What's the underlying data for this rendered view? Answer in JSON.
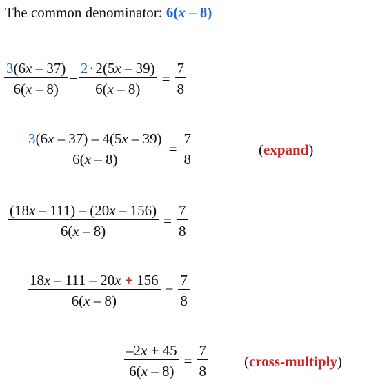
{
  "intro": {
    "text": "The common denominator: ",
    "denominator_coef": "6(",
    "denominator_var": "x",
    "denominator_rest": " – 8)"
  },
  "step1": {
    "left_num_coef": "3",
    "left_num_rest": "(6x – 37)",
    "left_den": "6(x – 8)",
    "minus": "–",
    "right_num_coef": "2",
    "right_num_dot": "·",
    "right_num_rest": "2(5x – 39)",
    "right_den": "6(x – 8)",
    "equals": "=",
    "rhs_num": "7",
    "rhs_den": "8"
  },
  "step2": {
    "num_coef": "3",
    "num_rest": "(6x – 37) – 4(5x – 39)",
    "den": "6(x – 8)",
    "equals": "=",
    "rhs_num": "7",
    "rhs_den": "8",
    "note_open": "(",
    "note_word": "expand",
    "note_close": ")"
  },
  "step3": {
    "num": "(18x – 111) – (20x – 156)",
    "den": "6(x – 8)",
    "equals": "=",
    "rhs_num": "7",
    "rhs_den": "8"
  },
  "step4": {
    "num_before": "18x – 111 – 20x ",
    "num_plus": "+",
    "num_after": " 156",
    "den": "6(x – 8)",
    "equals": "=",
    "rhs_num": "7",
    "rhs_den": "8"
  },
  "step5": {
    "num": "–2x + 45",
    "den": "6(x – 8)",
    "equals": "=",
    "rhs_num": "7",
    "rhs_den": "8",
    "note_open": "(",
    "note_word": "cross-multiply",
    "note_close": ")"
  },
  "colors": {
    "highlight_blue": "#1a66e0",
    "highlight_red": "#d71f1f"
  }
}
